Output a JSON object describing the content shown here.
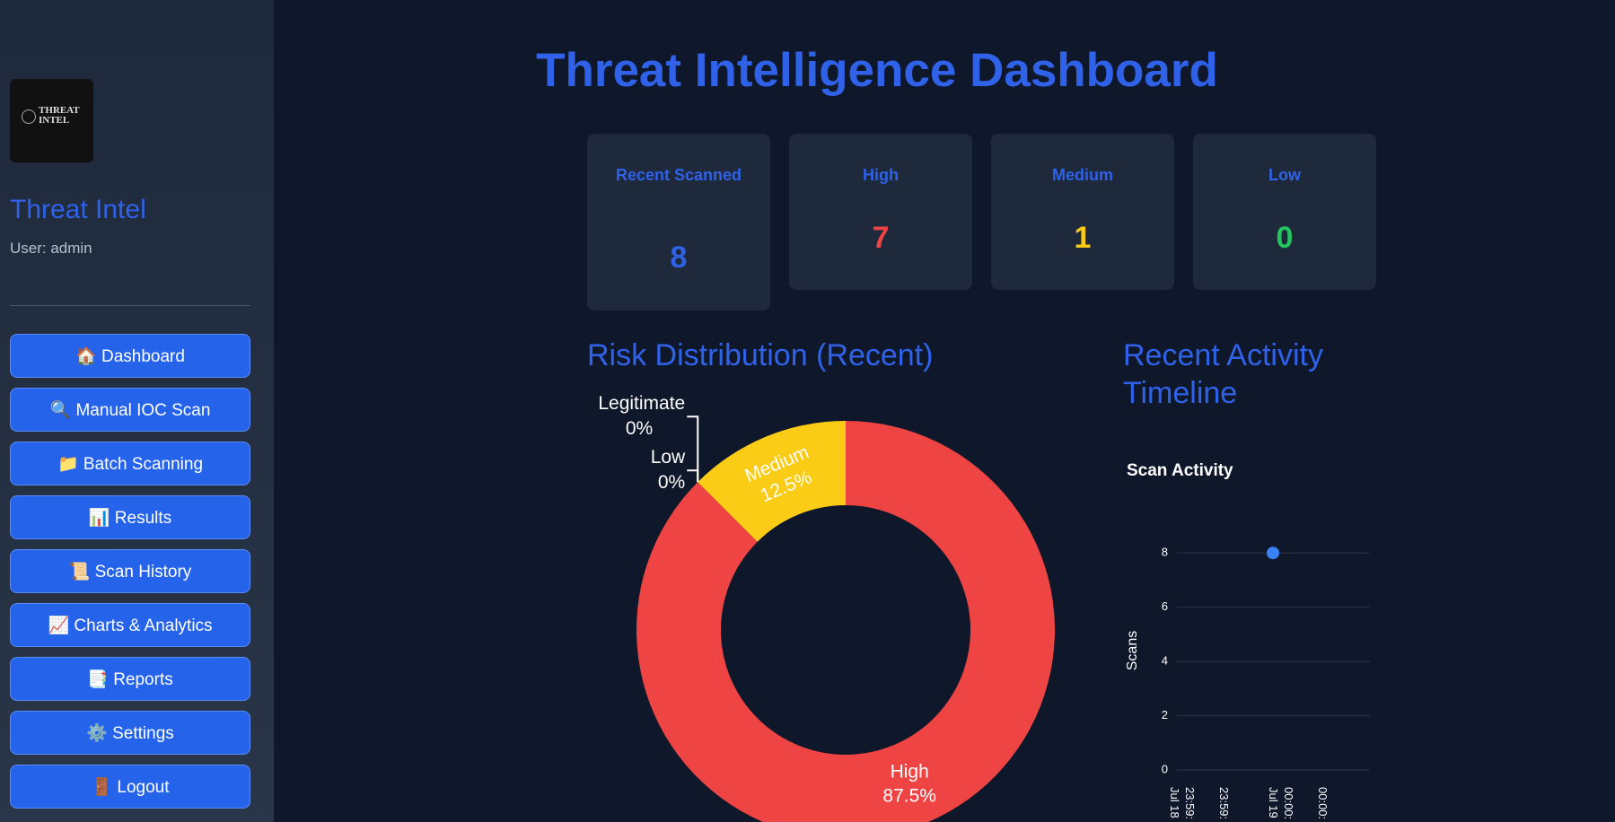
{
  "sidebar": {
    "logo": {
      "line1": "THREAT",
      "line2": "INTEL"
    },
    "app_name": "Threat Intel",
    "user": "User: admin",
    "nav": [
      "🏠 Dashboard",
      "🔍 Manual IOC Scan",
      "📁 Batch Scanning",
      "📊 Results",
      "📜 Scan History",
      "📈 Charts & Analytics",
      "📑 Reports",
      "⚙️ Settings",
      "🚪 Logout"
    ]
  },
  "header": {
    "title": "Threat Intelligence Dashboard"
  },
  "metrics": [
    {
      "label": "Recent Scanned",
      "value": 8,
      "color": "#2f62e8"
    },
    {
      "label": "High",
      "value": 7,
      "color": "#ef4444"
    },
    {
      "label": "Medium",
      "value": 1,
      "color": "#facc15"
    },
    {
      "label": "Low",
      "value": 0,
      "color": "#22c55e"
    }
  ],
  "risk_section": {
    "heading": "Risk Distribution (Recent)"
  },
  "activity_section": {
    "heading": "Recent Activity Timeline"
  },
  "chart_data": [
    {
      "type": "pie",
      "hole": true,
      "categories": [
        "High",
        "Low",
        "Legitimate",
        "Medium"
      ],
      "values": [
        87.5,
        0,
        0,
        12.5
      ],
      "value_labels": [
        "87.5%",
        "0%",
        "0%",
        "12.5%"
      ],
      "colors": [
        "#ef4444",
        "#22c55e",
        "#3b82f6",
        "#facc15"
      ]
    },
    {
      "type": "line",
      "title": "Scan Activity",
      "y_label": "Scans",
      "categories": [
        "Jul 18\n23:59:",
        "23:59:",
        "Jul 19\n00:00:",
        "00:00:"
      ],
      "values": [
        null,
        null,
        8,
        null
      ],
      "color": "#3b82f6",
      "ylim": [
        0,
        9
      ],
      "yticks": [
        0,
        2,
        4,
        6,
        8
      ],
      "grid": true
    }
  ]
}
